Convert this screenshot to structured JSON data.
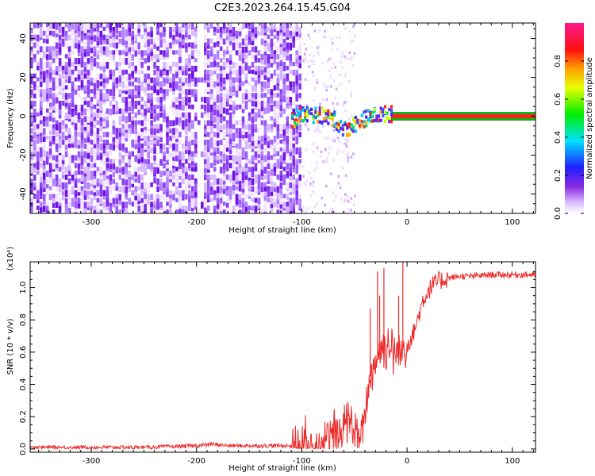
{
  "figure": {
    "title": "C2E3.2023.264.15.45.G04"
  },
  "chart_data": [
    {
      "type": "heatmap",
      "xlabel": "Height of straight line (km)",
      "ylabel": "Frequency (Hz)",
      "xlim": [
        -358,
        122
      ],
      "ylim": [
        -50,
        48
      ],
      "xticks": [
        -300,
        -200,
        -100,
        0,
        100
      ],
      "yticks": [
        -40,
        -20,
        0,
        20,
        40
      ],
      "colorbar": {
        "label": "Normalized spectral amplitude",
        "range": [
          0,
          1
        ],
        "ticks": [
          0.0,
          0.2,
          0.4,
          0.6,
          0.8
        ],
        "colormap": "rainbow (violet-blue-cyan-green-yellow-orange-red-magenta)"
      },
      "features": {
        "noise_region_x": [
          -358,
          -100
        ],
        "gap_x": -197,
        "signal_track_x": [
          -110,
          122
        ],
        "signal_track_y": [
          [
            -110,
            -2
          ],
          [
            -100,
            1
          ],
          [
            -80,
            0
          ],
          [
            -70,
            -2
          ],
          [
            -60,
            -7
          ],
          [
            -50,
            -4
          ],
          [
            -40,
            -1
          ],
          [
            -25,
            1
          ],
          [
            -10,
            1
          ],
          [
            0,
            0
          ],
          [
            122,
            0
          ]
        ],
        "high_amplitude_from_x": -15,
        "high_amplitude_color": "#ff2020"
      }
    },
    {
      "type": "line",
      "xlabel": "Height of straight line (km)",
      "ylabel": "SNR (10 * v/v)",
      "scale_label": "(x10⁴)",
      "xlim": [
        -358,
        122
      ],
      "ylim": [
        -0.02,
        1.16
      ],
      "xticks": [
        -300,
        -200,
        -100,
        0,
        100
      ],
      "yticks": [
        0.0,
        0.2,
        0.4,
        0.6,
        0.8,
        1.0
      ],
      "series": [
        {
          "color": "#ee2a2a",
          "x": [
            -358,
            -300,
            -250,
            -200,
            -185,
            -170,
            -150,
            -120,
            -100,
            -90,
            -80,
            -70,
            -65,
            -60,
            -55,
            -50,
            -45,
            -40,
            -35,
            -30,
            -25,
            -20,
            -15,
            -10,
            -5,
            0,
            5,
            10,
            15,
            20,
            25,
            30,
            40,
            50,
            60,
            80,
            100,
            122
          ],
          "y": [
            0.01,
            0.01,
            0.01,
            0.02,
            0.03,
            0.02,
            0.02,
            0.02,
            0.02,
            0.03,
            0.05,
            0.08,
            0.12,
            0.15,
            0.18,
            0.12,
            0.03,
            0.2,
            0.45,
            0.55,
            0.62,
            0.65,
            0.62,
            0.58,
            0.6,
            0.65,
            0.7,
            0.8,
            0.92,
            0.98,
            1.02,
            1.04,
            1.06,
            1.07,
            1.07,
            1.08,
            1.08,
            1.08
          ]
        }
      ],
      "spikes": [
        {
          "x": -35,
          "y": 0.87
        },
        {
          "x": -28,
          "y": 1.1
        },
        {
          "x": -26,
          "y": 0.95
        },
        {
          "x": -22,
          "y": 1.12
        },
        {
          "x": -8,
          "y": 0.95
        },
        {
          "x": -4,
          "y": 1.16
        }
      ]
    }
  ]
}
